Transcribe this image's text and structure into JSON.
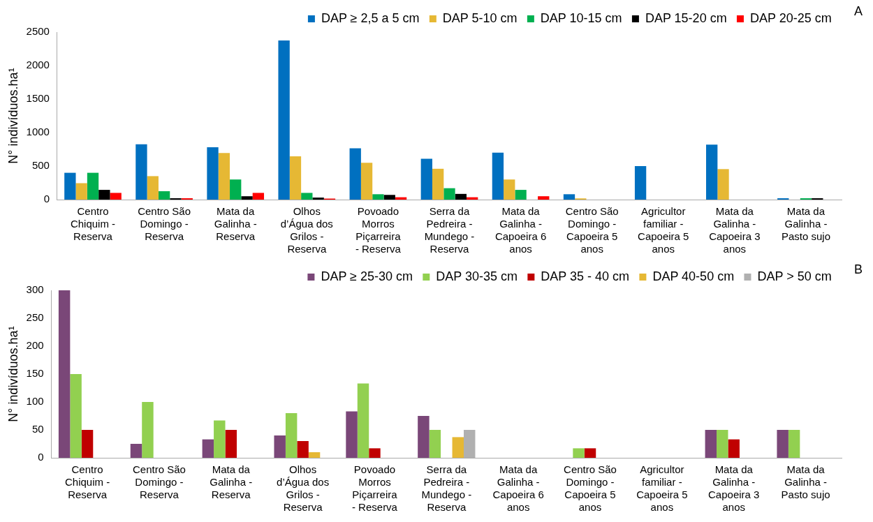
{
  "chart_data": [
    {
      "type": "bar",
      "ylabel": "N° indivíduos.ha¹",
      "annotations": [
        "A"
      ],
      "categories": [
        "Centro Chiquim - Reserva",
        "Centro São Domingo - Reserva",
        "Mata da Galinha - Reserva",
        "Olhos d’Água dos Grilos - Reserva",
        "Povoado Morros Piçarreira - Reserva",
        "Serra da Pedreira - Mundego - Reserva",
        "Mata da Galinha - Capoeira 6 anos",
        "Centro São Domingo - Capoeira 5 anos",
        "Agricultor familiar - Capoeira 5 anos",
        "Mata da Galinha - Capoeira 3 anos",
        "Mata da Galinha - Pasto sujo"
      ],
      "series": [
        {
          "name": "DAP ≥ 2,5 a 5 cm",
          "color": "#0070c0",
          "values": [
            400,
            825,
            780,
            2375,
            765,
            610,
            700,
            80,
            500,
            820,
            20
          ]
        },
        {
          "name": "DAP 5-10 cm",
          "color": "#e6b834",
          "values": [
            245,
            350,
            695,
            645,
            550,
            460,
            300,
            18,
            0,
            455,
            0
          ]
        },
        {
          "name": "DAP 10-15 cm",
          "color": "#00b050",
          "values": [
            400,
            125,
            300,
            100,
            80,
            170,
            145,
            0,
            0,
            0,
            20
          ]
        },
        {
          "name": "DAP 15-20 cm",
          "color": "#000000",
          "values": [
            145,
            20,
            50,
            30,
            70,
            85,
            0,
            0,
            0,
            0,
            20
          ]
        },
        {
          "name": "DAP 20-25 cm",
          "color": "#ff0000",
          "values": [
            100,
            20,
            100,
            15,
            35,
            35,
            50,
            0,
            0,
            0,
            0
          ]
        }
      ],
      "ylim": [
        0,
        2500
      ],
      "yticks": [
        0,
        500,
        1000,
        1500,
        2000,
        2500
      ],
      "grid": false,
      "legend": "top right"
    },
    {
      "type": "bar",
      "ylabel": "N° indivíduos.ha¹",
      "annotations": [
        "B"
      ],
      "categories": [
        "Centro Chiquim - Reserva",
        "Centro São Domingo - Reserva",
        "Mata da Galinha - Reserva",
        "Olhos d’Água dos Grilos - Reserva",
        "Povoado Morros Piçarreira - Reserva",
        "Serra da Pedreira - Mundego - Reserva",
        "Mata da Galinha - Capoeira 6 anos",
        "Centro São Domingo - Capoeira 5 anos",
        "Agricultor familiar - Capoeira 5 anos",
        "Mata da Galinha - Capoeira 3 anos",
        "Mata da Galinha - Pasto sujo"
      ],
      "series": [
        {
          "name": "DAP ≥ 25-30 cm",
          "color": "#7a4778",
          "values": [
            300,
            25,
            33,
            40,
            83,
            75,
            0,
            0,
            0,
            50,
            50
          ]
        },
        {
          "name": "DAP 30-35 cm",
          "color": "#92d050",
          "values": [
            150,
            100,
            67,
            80,
            133,
            50,
            0,
            17,
            0,
            50,
            50
          ]
        },
        {
          "name": "DAP 35 - 40 cm",
          "color": "#c00000",
          "values": [
            50,
            0,
            50,
            30,
            17,
            0,
            0,
            17,
            0,
            33,
            0
          ]
        },
        {
          "name": "DAP 40-50 cm",
          "color": "#e6b834",
          "values": [
            0,
            0,
            0,
            10,
            0,
            37,
            0,
            0,
            0,
            0,
            0
          ]
        },
        {
          "name": "DAP > 50 cm",
          "color": "#b0b0b0",
          "values": [
            0,
            0,
            0,
            0,
            0,
            50,
            0,
            0,
            0,
            0,
            0
          ]
        }
      ],
      "ylim": [
        0,
        300
      ],
      "yticks": [
        0,
        50,
        100,
        150,
        200,
        250,
        300
      ],
      "grid": false,
      "legend": "top right"
    }
  ]
}
